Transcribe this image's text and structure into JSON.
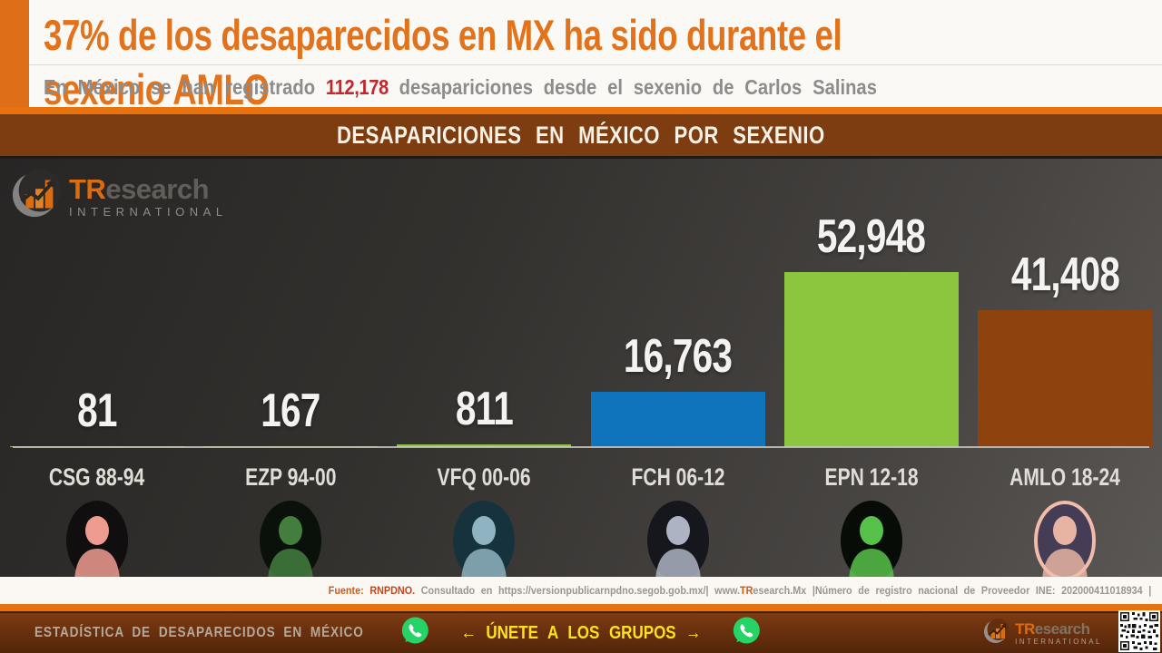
{
  "header": {
    "title": "37% de los desaparecidos en MX ha sido durante el sexenio AMLO",
    "subtitle_prefix": "En México se han registrado ",
    "subtitle_number": "112,178",
    "subtitle_suffix": " desapariciones desde el sexenio de Carlos Salinas"
  },
  "banner": {
    "title": "DESAPARICIONES EN MÉXICO POR SEXENIO"
  },
  "brand": {
    "prefix": "TR",
    "suffix": "esearch",
    "tagline": "INTERNATIONAL"
  },
  "chart_data": {
    "type": "bar",
    "title": "DESAPARICIONES EN MÉXICO POR SEXENIO",
    "categories": [
      "CSG 88-94",
      "EZP 94-00",
      "VFQ 00-06",
      "FCH 06-12",
      "EPN 12-18",
      "AMLO 18-24"
    ],
    "values": [
      81,
      167,
      811,
      16763,
      52948,
      41408
    ],
    "value_labels": [
      "81",
      "167",
      "811",
      "16,763",
      "52,948",
      "41,408"
    ],
    "bar_colors": [
      "#8CC63F",
      "#8CC63F",
      "#8CC63F",
      "#0F74BC",
      "#8CC63F",
      "#8E430F"
    ],
    "total": 112178,
    "ylim": [
      0,
      55000
    ],
    "grid": false,
    "legend": false,
    "background": "dark-charcoal-gradient",
    "portrait_colors": [
      {
        "bg": "#100e0e",
        "fg": "#EF9C90",
        "ring": ""
      },
      {
        "bg": "#0a100a",
        "fg": "#447E3E",
        "ring": ""
      },
      {
        "bg": "#16333d",
        "fg": "#8FB3C0",
        "ring": ""
      },
      {
        "bg": "#16161d",
        "fg": "#ADB3C2",
        "ring": ""
      },
      {
        "bg": "#070c06",
        "fg": "#57C24B",
        "ring": ""
      },
      {
        "bg": "#453d55",
        "fg": "#E7B4A3",
        "ring": "#F2BCAB"
      }
    ]
  },
  "source": {
    "fuente_label": "Fuente: ",
    "fuente_value": "RNPDNO.",
    "consultado": " Consultado en https://versionpublicarnpdno.segob.gob.mx/|  www.",
    "brand_orange": "TR",
    "brand_rest": "esearch.Mx ",
    "registro": " |Número de registro nacional de Proveedor INE: 202000411018934  |"
  },
  "footer": {
    "left_text": "ESTADÍSTICA DE DESAPARECIDOS EN MÉXICO",
    "cta_text": "← ÚNETE A LOS GRUPOS →"
  },
  "colors": {
    "accent_orange": "#E8730E",
    "title_orange": "#E2731C",
    "banner_brown": "#7D3D10",
    "footer_brown": "#622C0D",
    "highlight_red": "#C1272D",
    "whatsapp_green": "#25D366"
  }
}
